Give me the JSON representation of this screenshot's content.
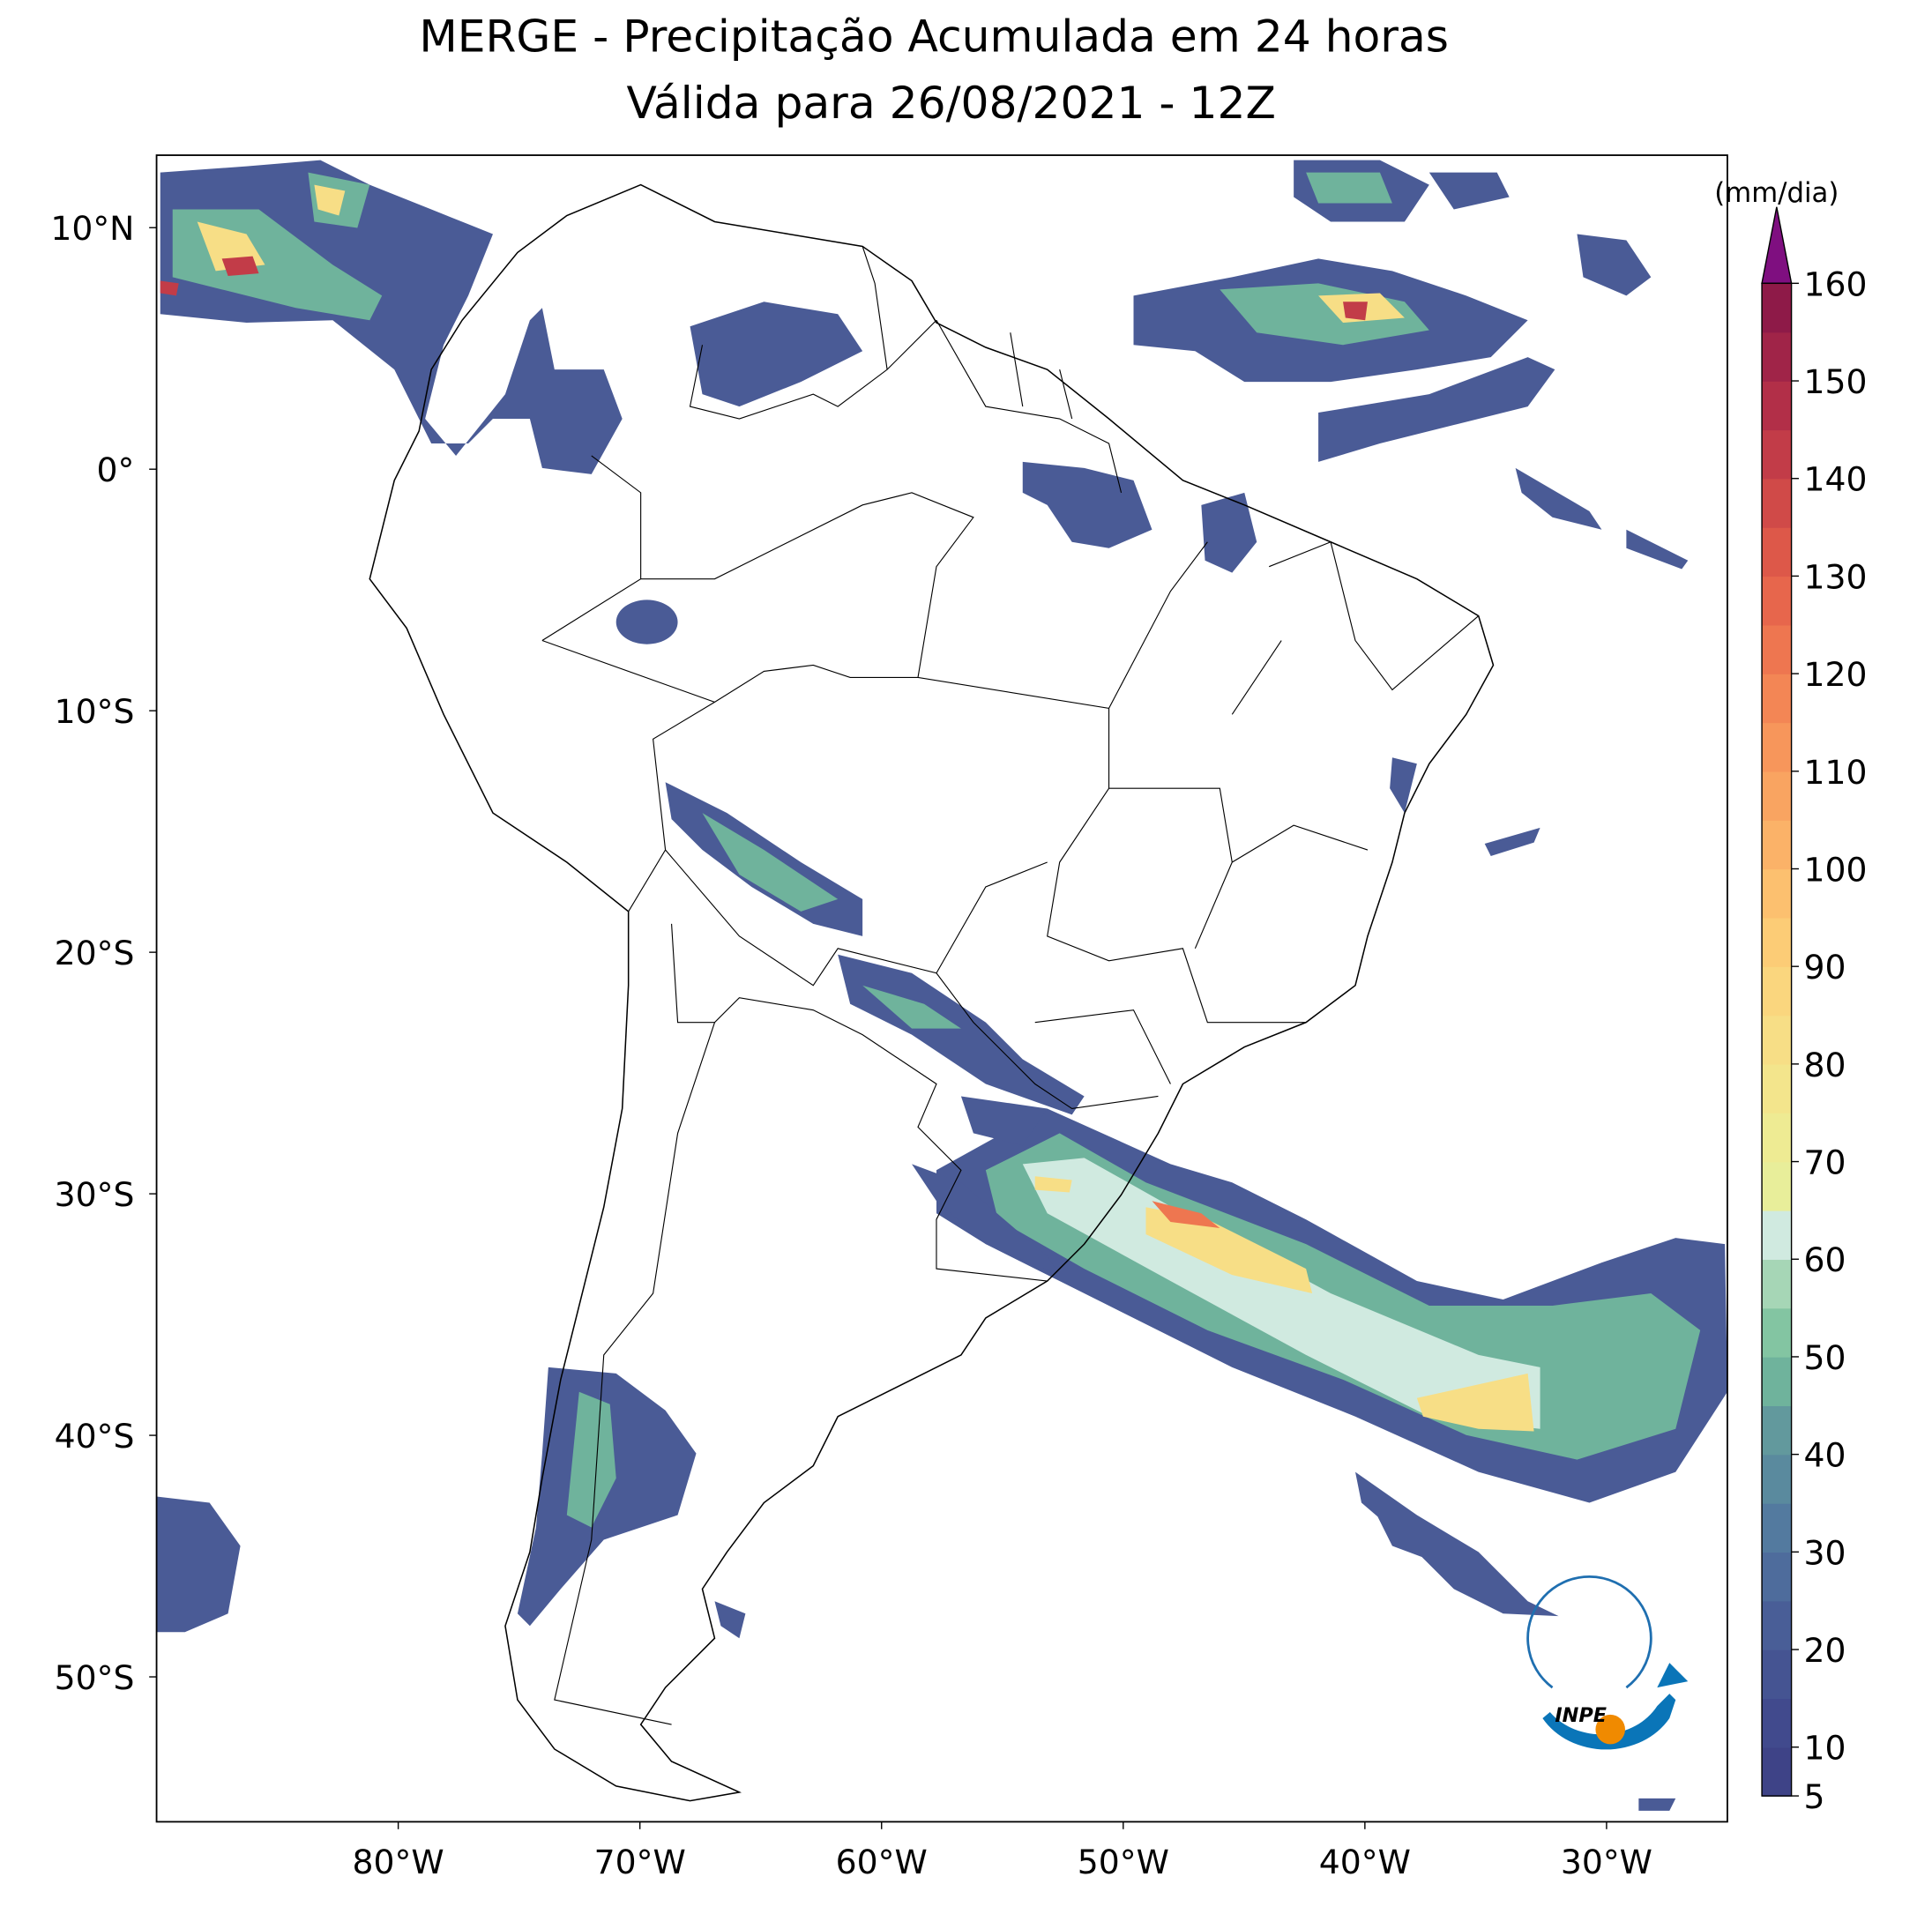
{
  "chart_data": {
    "type": "contour-map",
    "title": "MERGE - Precipitação Acumulada em 24 horas",
    "subtitle": "Válida para 26/08/2021 - 12Z",
    "xlim": [
      -90,
      -25
    ],
    "ylim": [
      -56,
      13
    ],
    "xticks": [
      {
        "value": -80,
        "label": "80°W"
      },
      {
        "value": -70,
        "label": "70°W"
      },
      {
        "value": -60,
        "label": "60°W"
      },
      {
        "value": -50,
        "label": "50°W"
      },
      {
        "value": -40,
        "label": "40°W"
      },
      {
        "value": -30,
        "label": "30°W"
      }
    ],
    "yticks": [
      {
        "value": 10,
        "label": "10°N"
      },
      {
        "value": 0,
        "label": "0°"
      },
      {
        "value": -10,
        "label": "10°S"
      },
      {
        "value": -20,
        "label": "20°S"
      },
      {
        "value": -30,
        "label": "30°S"
      },
      {
        "value": -40,
        "label": "40°S"
      },
      {
        "value": -50,
        "label": "50°S"
      }
    ],
    "colorbar": {
      "label": "(mm/dia)",
      "lim": [
        5,
        160
      ],
      "ticks": [
        5,
        10,
        20,
        30,
        40,
        50,
        60,
        70,
        80,
        90,
        100,
        110,
        120,
        130,
        140,
        150,
        160
      ],
      "colors": [
        "#3e4387",
        "#414a8d",
        "#455492",
        "#495e97",
        "#4e6c9c",
        "#537a9f",
        "#5a8a9e",
        "#62999d",
        "#6fb39c",
        "#83c5a2",
        "#a6d6b6",
        "#d0eae0",
        "#e8ee9a",
        "#eeeb93",
        "#f3e58c",
        "#f7de86",
        "#fad67e",
        "#fccc76",
        "#fcc06f",
        "#fbb268",
        "#f9a461",
        "#f7965b",
        "#f38655",
        "#ee7650",
        "#e7664c",
        "#dd5849",
        "#d04a48",
        "#c23c48",
        "#b22f48",
        "#a02448",
        "#8e1a48"
      ],
      "extend_color": "#7f0f80"
    }
  },
  "logo": {
    "text": "INPE"
  }
}
